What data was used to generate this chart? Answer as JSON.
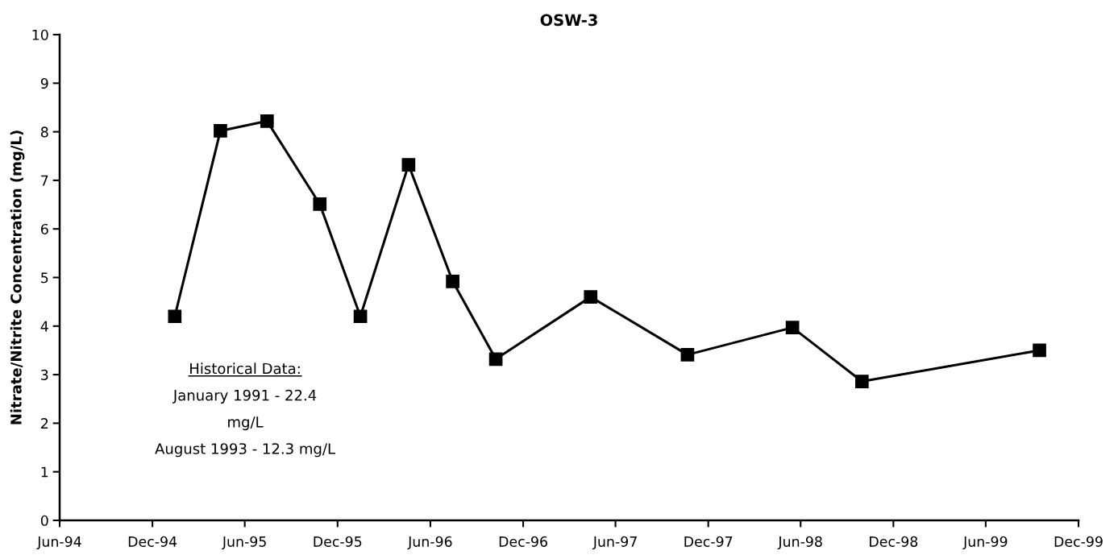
{
  "chart_data": {
    "type": "line",
    "title": "OSW-3",
    "ylabel": "Nitrate/Nitrite Concentration (mg/L)",
    "x": [
      "1995-01-14",
      "1995-04-14",
      "1995-07-15",
      "1995-10-27",
      "1996-01-15",
      "1996-04-19",
      "1996-07-15",
      "1996-10-08",
      "1997-04-13",
      "1997-10-21",
      "1998-05-16",
      "1998-09-30",
      "1999-09-15"
    ],
    "series": [
      {
        "color": "#000000",
        "values": [
          4.2,
          8.02,
          8.22,
          6.51,
          4.2,
          7.32,
          4.92,
          3.32,
          4.6,
          3.41,
          3.97,
          2.86,
          3.5
        ]
      }
    ],
    "marker": "square",
    "line_style": "solid",
    "grid": false,
    "legend": false,
    "xlim": [
      "1994-06-01",
      "1999-12-01"
    ],
    "xticks": [
      {
        "value": "1994-06-01",
        "label": "Jun-94"
      },
      {
        "value": "1994-12-01",
        "label": "Dec-94"
      },
      {
        "value": "1995-06-01",
        "label": "Jun-95"
      },
      {
        "value": "1995-12-01",
        "label": "Dec-95"
      },
      {
        "value": "1996-06-01",
        "label": "Jun-96"
      },
      {
        "value": "1996-12-01",
        "label": "Dec-96"
      },
      {
        "value": "1997-06-01",
        "label": "Jun-97"
      },
      {
        "value": "1997-12-01",
        "label": "Dec-97"
      },
      {
        "value": "1998-06-01",
        "label": "Jun-98"
      },
      {
        "value": "1998-12-01",
        "label": "Dec-98"
      },
      {
        "value": "1999-06-01",
        "label": "Jun-99"
      },
      {
        "value": "1999-12-01",
        "label": "Dec-99"
      }
    ],
    "ylim": [
      0,
      10
    ],
    "yticks": [
      0,
      1,
      2,
      3,
      4,
      5,
      6,
      7,
      8,
      9,
      10
    ],
    "annotations": [
      "Historical Data:",
      "January 1991 - 22.4",
      "mg/L",
      "August 1993 - 12.3 mg/L"
    ]
  }
}
